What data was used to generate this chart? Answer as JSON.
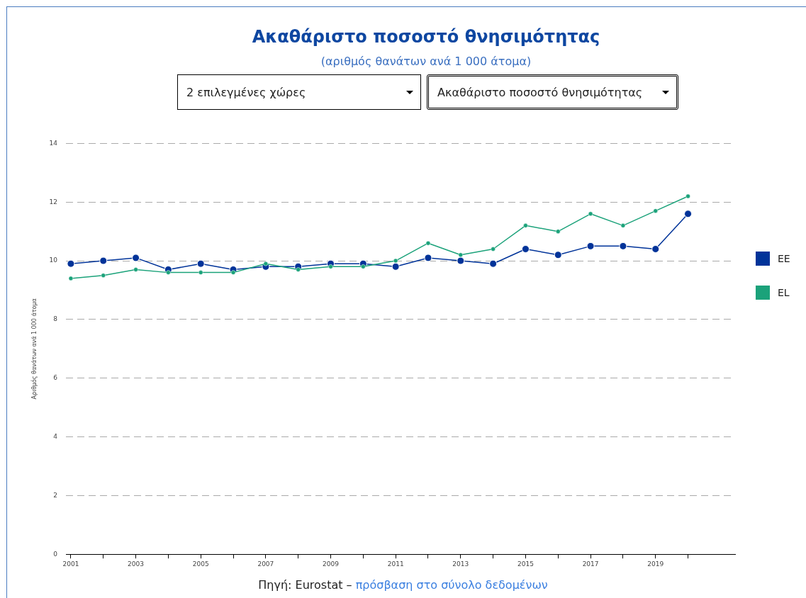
{
  "chart_data": {
    "type": "line",
    "title": "Ακαθάριστο ποσοστό θνησιμότητας",
    "subtitle": "(αριθμός θανάτων ανά 1 000 άτομα)",
    "ylabel": "Αριθμός θανάτων ανά 1 000 άτομα",
    "x": [
      2001,
      2002,
      2003,
      2004,
      2005,
      2006,
      2007,
      2008,
      2009,
      2010,
      2011,
      2012,
      2013,
      2014,
      2015,
      2016,
      2017,
      2018,
      2019,
      2020
    ],
    "series": [
      {
        "name": "EE",
        "color": "#003399",
        "values": [
          9.9,
          10.0,
          10.1,
          9.7,
          9.9,
          9.7,
          9.8,
          9.8,
          9.9,
          9.9,
          9.8,
          10.1,
          10.0,
          9.9,
          10.4,
          10.2,
          10.5,
          10.5,
          10.4,
          11.6
        ]
      },
      {
        "name": "EL",
        "color": "#1ba27a",
        "values": [
          9.4,
          9.5,
          9.7,
          9.6,
          9.6,
          9.6,
          9.9,
          9.7,
          9.8,
          9.8,
          10.0,
          10.6,
          10.2,
          10.4,
          11.2,
          11.0,
          11.6,
          11.2,
          11.7,
          12.2
        ]
      }
    ],
    "xlim": [
      2000.85,
      2021.45
    ],
    "xticks": [
      2001,
      {
        "value": 2002,
        "label": null
      },
      2003,
      {
        "value": 2004,
        "label": null
      },
      2005,
      {
        "value": 2006,
        "label": null
      },
      2007,
      {
        "value": 2008,
        "label": null
      },
      2009,
      {
        "value": 2010,
        "label": null
      },
      2011,
      {
        "value": 2012,
        "label": null
      },
      2013,
      {
        "value": 2014,
        "label": null
      },
      2015,
      {
        "value": 2016,
        "label": null
      },
      2017,
      {
        "value": 2018,
        "label": null
      },
      2019,
      {
        "value": 2020,
        "label": null
      }
    ],
    "ylim": [
      0,
      14
    ],
    "yticks": [
      0,
      2,
      4,
      6,
      8,
      10,
      12,
      14
    ],
    "grid": "y",
    "line_style": "solid",
    "marker": "circle",
    "legend": "right",
    "annotations": [
      "2 επιλεγμένες χώρες",
      "Ακαθάριστο ποσοστό θνησιμότητας",
      "Πηγή: Eurostat –",
      "πρόσβαση στο σύνολο δεδομένων"
    ]
  }
}
